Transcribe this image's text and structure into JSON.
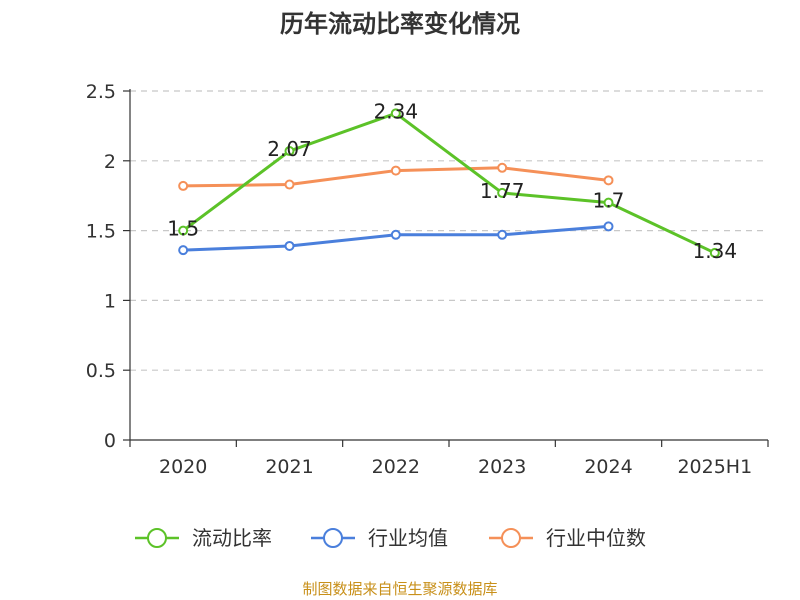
{
  "chart_data": {
    "type": "line",
    "title": "历年流动比率变化情况",
    "xlabel": "",
    "ylabel": "",
    "categories": [
      "2020",
      "2021",
      "2022",
      "2023",
      "2024",
      "2025H1"
    ],
    "ylim": [
      0,
      2.5
    ],
    "yticks": [
      "0",
      "0.5",
      "1",
      "1.5",
      "2",
      "2.5"
    ],
    "grid": true,
    "legend_position": "bottom",
    "series": [
      {
        "name": "流动比率",
        "color": "#5cc228",
        "values": [
          1.5,
          2.07,
          2.34,
          1.77,
          1.7,
          1.34
        ],
        "labels": [
          "1.5",
          "2.07",
          "2.34",
          "1.77",
          "1.7",
          "1.34"
        ]
      },
      {
        "name": "行业均值",
        "color": "#4a7fdc",
        "values": [
          1.36,
          1.39,
          1.47,
          1.47,
          1.53,
          null
        ]
      },
      {
        "name": "行业中位数",
        "color": "#f59058",
        "values": [
          1.82,
          1.83,
          1.93,
          1.95,
          1.86,
          null
        ]
      }
    ]
  },
  "source": "制图数据来自恒生聚源数据库"
}
